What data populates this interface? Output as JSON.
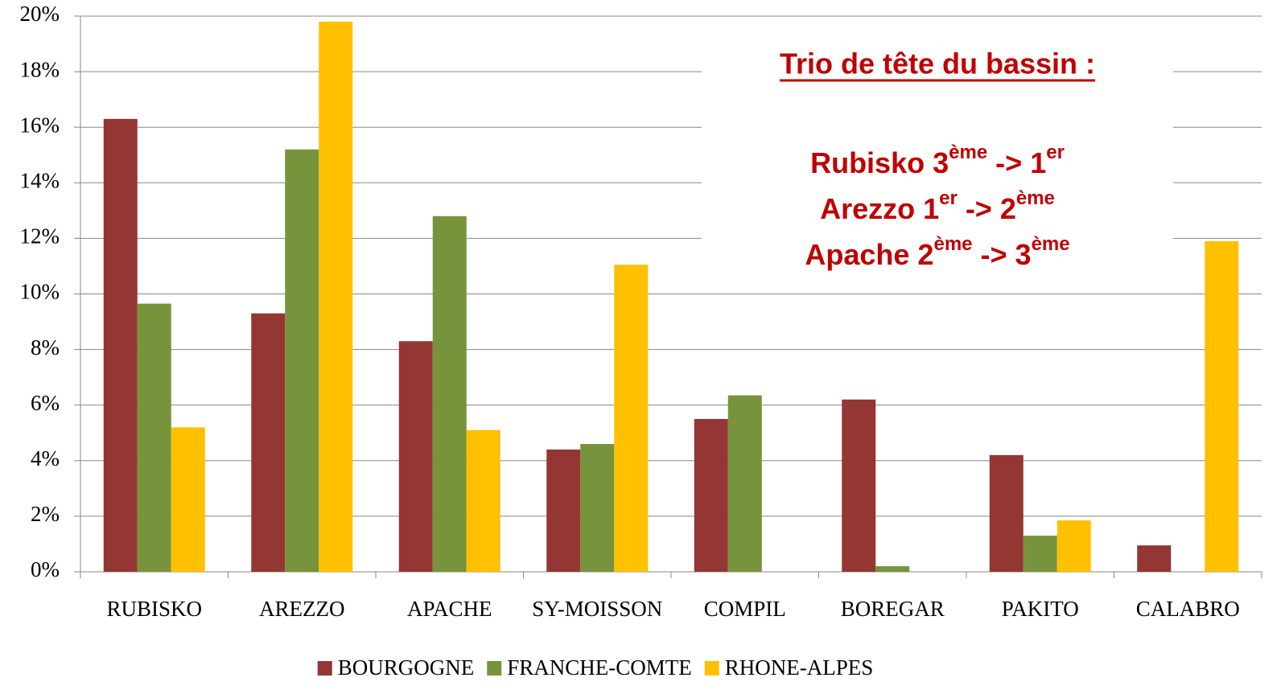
{
  "chart_data": {
    "type": "bar",
    "categories": [
      "RUBISKO",
      "AREZZO",
      "APACHE",
      "SY-MOISSON",
      "COMPIL",
      "BOREGAR",
      "PAKITO",
      "CALABRO"
    ],
    "series": [
      {
        "name": "BOURGOGNE",
        "color": "#943634",
        "values": [
          16.3,
          9.3,
          8.3,
          4.4,
          5.5,
          6.2,
          4.2,
          0.95
        ]
      },
      {
        "name": "FRANCHE-COMTE",
        "color": "#77933c",
        "values": [
          9.65,
          15.2,
          12.8,
          4.6,
          6.35,
          0.2,
          1.3,
          0
        ]
      },
      {
        "name": "RHONE-ALPES",
        "color": "#ffc000",
        "values": [
          5.2,
          19.8,
          5.1,
          11.05,
          0,
          0,
          1.85,
          11.9
        ]
      }
    ],
    "ylim": [
      0,
      20
    ],
    "yticks": [
      {
        "value": 0,
        "label": "0%"
      },
      {
        "value": 2,
        "label": "2%"
      },
      {
        "value": 4,
        "label": "4%"
      },
      {
        "value": 6,
        "label": "6%"
      },
      {
        "value": 8,
        "label": "8%"
      },
      {
        "value": 10,
        "label": "10%"
      },
      {
        "value": 12,
        "label": "12%"
      },
      {
        "value": 14,
        "label": "14%"
      },
      {
        "value": 16,
        "label": "16%"
      },
      {
        "value": 18,
        "label": "18%"
      },
      {
        "value": 20,
        "label": "20%"
      }
    ],
    "grid": true,
    "legend": "bottom",
    "annotation": {
      "title": "Trio de tête du bassin :",
      "color": "#c00000",
      "lines": [
        [
          "Rubisko 3",
          "ème",
          " -> 1",
          "er"
        ],
        [
          "Arezzo 1",
          "er",
          " -> 2",
          "ème"
        ],
        [
          "Apache 2",
          "ème",
          " -> 3",
          "ème"
        ]
      ]
    }
  }
}
